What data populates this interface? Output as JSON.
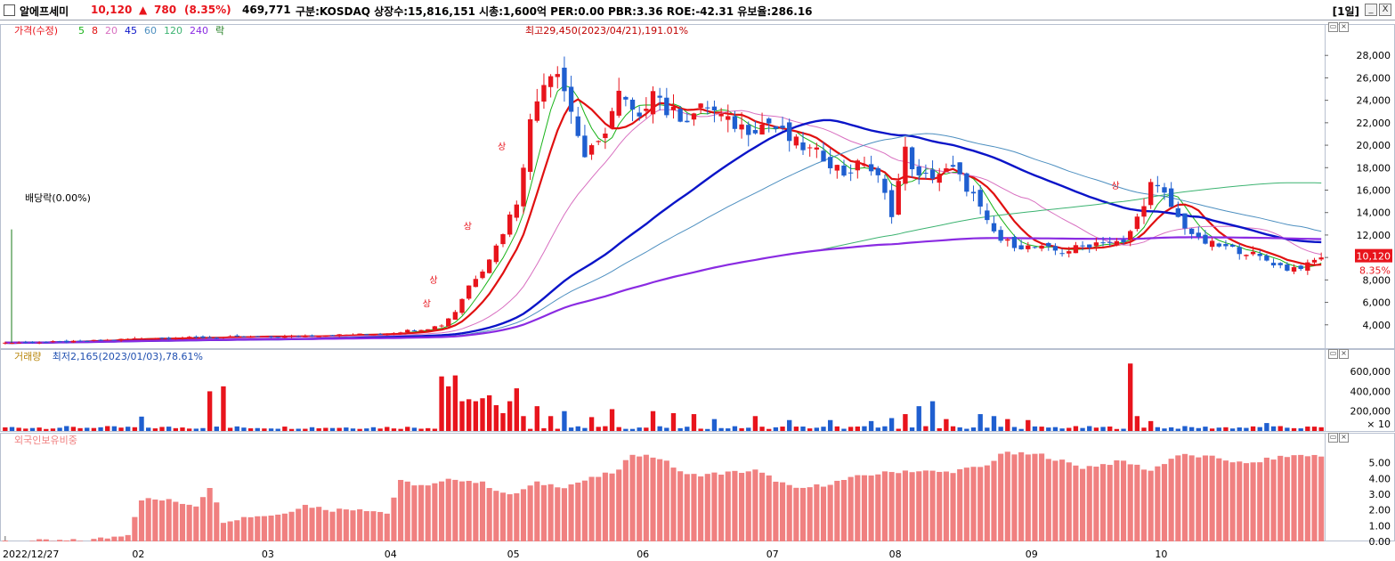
{
  "header": {
    "name": "알에프세미",
    "price": "10,120",
    "change_arrow": "▲",
    "change": "780",
    "change_pct": "(8.35%)",
    "volume": "469,771",
    "info": "구분:KOSDAQ 상장수:15,816,151 시총:1,600억 PER:0.00 PBR:3.36 ROE:-42.31 유보율:286.16",
    "timeframe": "[1일]",
    "min_label": "_",
    "close_label": "X"
  },
  "colors": {
    "up": "#e8141c",
    "down": "#1f5fd0",
    "ma5": "#19b319",
    "ma8": "#e01010",
    "ma20": "#d86fc0",
    "ma45": "#0a14c8",
    "ma60": "#4d8fc0",
    "ma120": "#3cb371",
    "ma240": "#8a2be2",
    "foreign": "#f08080",
    "frame": "#b8c0d0",
    "grid": "#d0d6e6"
  },
  "chart_data": [
    {
      "type": "candlestick",
      "title": "가격(수정)",
      "legend": [
        "5",
        "8",
        "20",
        "45",
        "60",
        "120",
        "240",
        "락"
      ],
      "ylim": [
        2000,
        30000
      ],
      "yticks": [
        "4,000",
        "6,000",
        "8,000",
        "10,000",
        "12,000",
        "14,000",
        "16,000",
        "18,000",
        "20,000",
        "22,000",
        "24,000",
        "26,000",
        "28,000"
      ],
      "xticks": [
        "2022/12/27",
        "02",
        "03",
        "04",
        "05",
        "06",
        "07",
        "08",
        "09",
        "10"
      ],
      "annotations": {
        "high": "최고29,450(2023/04/21),191.01%",
        "low": "최저2,165(2023/01/03),78.61%",
        "dividend": "배당락(0.00%)",
        "limit_up": "상"
      },
      "last_price": "10,120",
      "last_pct": "8.35%",
      "knots": [
        [
          0,
          2400
        ],
        [
          10,
          2500
        ],
        [
          20,
          2800
        ],
        [
          40,
          2950
        ],
        [
          55,
          3200
        ],
        [
          62,
          3700
        ],
        [
          64,
          4000
        ],
        [
          66,
          5200
        ],
        [
          68,
          7500
        ],
        [
          70,
          9000
        ],
        [
          72,
          11000
        ],
        [
          75,
          15000
        ],
        [
          77,
          22000
        ],
        [
          79,
          26000
        ],
        [
          81,
          27000
        ],
        [
          83,
          23000
        ],
        [
          85,
          19000
        ],
        [
          87,
          20000
        ],
        [
          90,
          24500
        ],
        [
          93,
          22000
        ],
        [
          95,
          25500
        ],
        [
          97,
          23000
        ],
        [
          100,
          22500
        ],
        [
          103,
          23500
        ],
        [
          106,
          22000
        ],
        [
          109,
          21500
        ],
        [
          112,
          22000
        ],
        [
          115,
          20500
        ],
        [
          118,
          19500
        ],
        [
          120,
          19000
        ],
        [
          123,
          17500
        ],
        [
          126,
          18500
        ],
        [
          128,
          17000
        ],
        [
          130,
          14000
        ],
        [
          132,
          19500
        ],
        [
          134,
          17000
        ],
        [
          137,
          17500
        ],
        [
          139,
          17800
        ],
        [
          142,
          15500
        ],
        [
          144,
          13000
        ],
        [
          146,
          11500
        ],
        [
          149,
          11000
        ],
        [
          152,
          10800
        ],
        [
          155,
          10500
        ],
        [
          158,
          11000
        ],
        [
          161,
          11500
        ],
        [
          164,
          11200
        ],
        [
          166,
          13500
        ],
        [
          168,
          16500
        ],
        [
          170,
          15500
        ],
        [
          172,
          13500
        ],
        [
          175,
          11500
        ],
        [
          178,
          11000
        ],
        [
          182,
          10500
        ],
        [
          186,
          9500
        ],
        [
          188,
          9000
        ],
        [
          191,
          9300
        ],
        [
          193,
          10120
        ]
      ]
    },
    {
      "type": "bar",
      "title": "거래량",
      "yticks": [
        "200,000",
        "400,000",
        "600,000"
      ],
      "unit": "× 10",
      "ylim": [
        0,
        700000
      ],
      "spikes": [
        [
          13,
          30000
        ],
        [
          20,
          145000
        ],
        [
          30,
          400000
        ],
        [
          32,
          450000
        ],
        [
          64,
          550000
        ],
        [
          65,
          450000
        ],
        [
          66,
          560000
        ],
        [
          67,
          300000
        ],
        [
          68,
          320000
        ],
        [
          69,
          300000
        ],
        [
          70,
          330000
        ],
        [
          71,
          360000
        ],
        [
          72,
          260000
        ],
        [
          73,
          180000
        ],
        [
          74,
          300000
        ],
        [
          75,
          430000
        ],
        [
          76,
          150000
        ],
        [
          78,
          250000
        ],
        [
          80,
          150000
        ],
        [
          82,
          200000
        ],
        [
          86,
          140000
        ],
        [
          89,
          220000
        ],
        [
          95,
          200000
        ],
        [
          98,
          180000
        ],
        [
          101,
          170000
        ],
        [
          104,
          120000
        ],
        [
          110,
          150000
        ],
        [
          115,
          110000
        ],
        [
          121,
          110000
        ],
        [
          127,
          100000
        ],
        [
          130,
          130000
        ],
        [
          132,
          170000
        ],
        [
          134,
          250000
        ],
        [
          136,
          300000
        ],
        [
          138,
          120000
        ],
        [
          143,
          170000
        ],
        [
          145,
          150000
        ],
        [
          147,
          120000
        ],
        [
          150,
          110000
        ],
        [
          165,
          680000
        ],
        [
          166,
          150000
        ],
        [
          168,
          100000
        ],
        [
          185,
          80000
        ]
      ]
    },
    {
      "type": "bar",
      "title": "외국인보유비중",
      "yticks": [
        "0.00",
        "1.00",
        "2.00",
        "3.00",
        "4.00",
        "5.00"
      ],
      "ylim": [
        0,
        6
      ],
      "knots": [
        [
          0,
          0
        ],
        [
          12,
          0.05
        ],
        [
          16,
          0.3
        ],
        [
          18,
          0.5
        ],
        [
          20,
          2.7
        ],
        [
          24,
          2.6
        ],
        [
          28,
          2.3
        ],
        [
          30,
          3.5
        ],
        [
          32,
          1.3
        ],
        [
          36,
          1.6
        ],
        [
          40,
          1.7
        ],
        [
          44,
          2.3
        ],
        [
          48,
          2.0
        ],
        [
          52,
          2.1
        ],
        [
          56,
          1.8
        ],
        [
          58,
          3.8
        ],
        [
          62,
          3.5
        ],
        [
          66,
          4.0
        ],
        [
          70,
          3.7
        ],
        [
          74,
          2.9
        ],
        [
          78,
          3.7
        ],
        [
          82,
          3.5
        ],
        [
          86,
          4.0
        ],
        [
          90,
          4.5
        ],
        [
          92,
          5.6
        ],
        [
          96,
          5.3
        ],
        [
          100,
          4.2
        ],
        [
          104,
          4.3
        ],
        [
          110,
          4.5
        ],
        [
          116,
          3.3
        ],
        [
          120,
          3.6
        ],
        [
          126,
          4.2
        ],
        [
          132,
          4.5
        ],
        [
          138,
          4.4
        ],
        [
          144,
          4.8
        ],
        [
          146,
          5.6
        ],
        [
          152,
          5.5
        ],
        [
          158,
          4.7
        ],
        [
          164,
          5.1
        ],
        [
          168,
          4.5
        ],
        [
          172,
          5.5
        ],
        [
          178,
          5.3
        ],
        [
          182,
          4.9
        ],
        [
          186,
          5.3
        ],
        [
          190,
          5.5
        ],
        [
          193,
          5.4
        ]
      ]
    }
  ]
}
